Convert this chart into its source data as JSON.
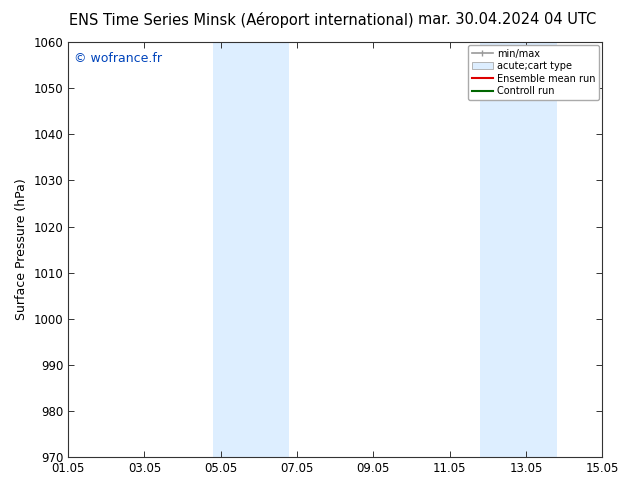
{
  "title_left": "ENS Time Series Minsk (Aéroport international)",
  "title_right": "mar. 30.04.2024 04 UTC",
  "ylabel": "Surface Pressure (hPa)",
  "ylim": [
    970,
    1060
  ],
  "yticks": [
    970,
    980,
    990,
    1000,
    1010,
    1020,
    1030,
    1040,
    1050,
    1060
  ],
  "xlim_start": 0,
  "xlim_end": 14,
  "xtick_positions": [
    0,
    2,
    4,
    6,
    8,
    10,
    12,
    14
  ],
  "xtick_labels": [
    "01.05",
    "03.05",
    "05.05",
    "07.05",
    "09.05",
    "11.05",
    "13.05",
    "15.05"
  ],
  "shade_bands": [
    {
      "xmin": 3.8,
      "xmax": 5.8
    },
    {
      "xmin": 10.8,
      "xmax": 12.8
    }
  ],
  "shade_color": "#ddeeff",
  "watermark": "© wofrance.fr",
  "watermark_color": "#0044bb",
  "legend_items": [
    {
      "label": "min/max",
      "color": "#aaaaaa",
      "type": "hline"
    },
    {
      "label": "acute;cart type",
      "color": "#ddeeff",
      "type": "box"
    },
    {
      "label": "Ensemble mean run",
      "color": "#dd0000",
      "type": "line"
    },
    {
      "label": "Controll run",
      "color": "#006600",
      "type": "line"
    }
  ],
  "bg_color": "#ffffff",
  "title_fontsize": 10.5,
  "axis_label_fontsize": 9,
  "tick_fontsize": 8.5,
  "watermark_fontsize": 9
}
